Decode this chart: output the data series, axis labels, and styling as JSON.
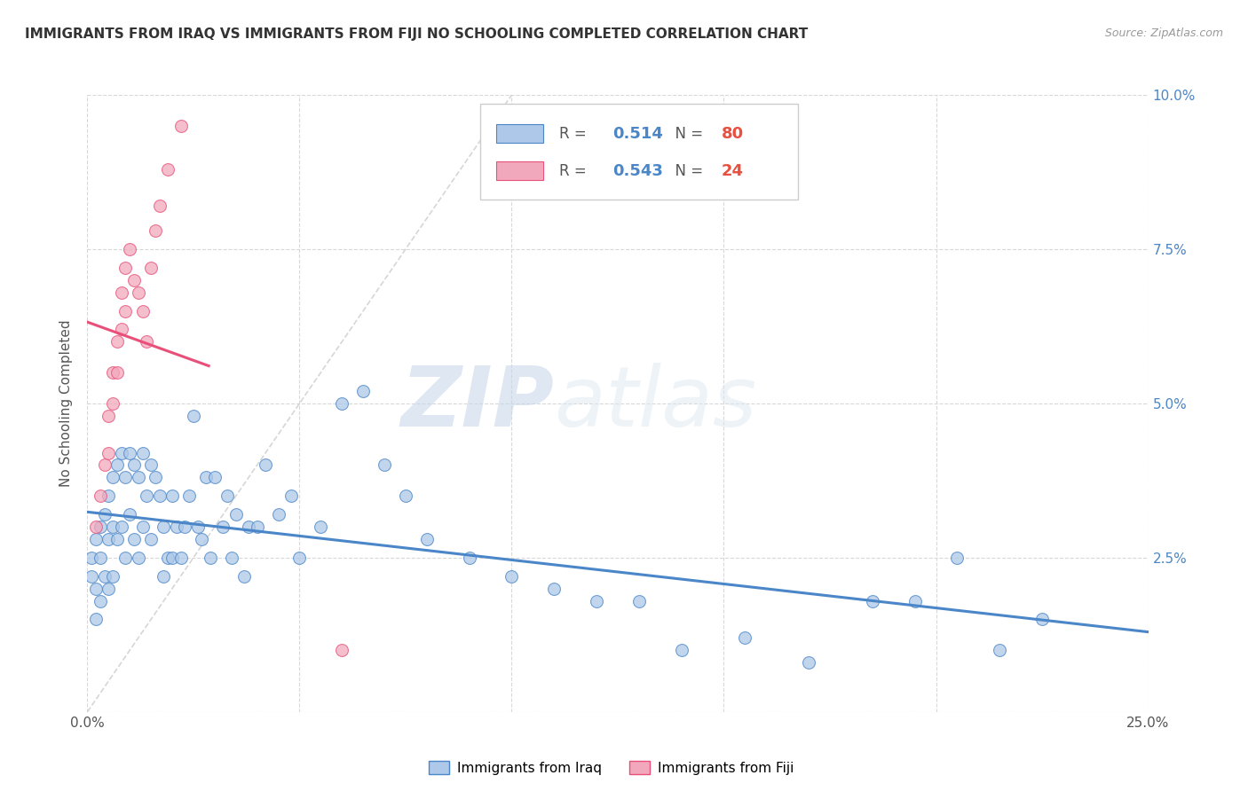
{
  "title": "IMMIGRANTS FROM IRAQ VS IMMIGRANTS FROM FIJI NO SCHOOLING COMPLETED CORRELATION CHART",
  "source": "Source: ZipAtlas.com",
  "ylabel": "No Schooling Completed",
  "x_min": 0.0,
  "x_max": 0.25,
  "y_min": 0.0,
  "y_max": 0.1,
  "iraq_R": 0.514,
  "iraq_N": 80,
  "fiji_R": 0.543,
  "fiji_N": 24,
  "iraq_color": "#adc8e8",
  "fiji_color": "#f2a8bc",
  "iraq_line_color": "#4a86c8",
  "fiji_line_color": "#e8507a",
  "diagonal_color": "#cccccc",
  "watermark_zip": "ZIP",
  "watermark_atlas": "atlas",
  "legend_iraq_label": "Immigrants from Iraq",
  "legend_fiji_label": "Immigrants from Fiji",
  "iraq_x": [
    0.001,
    0.001,
    0.002,
    0.002,
    0.002,
    0.003,
    0.003,
    0.003,
    0.004,
    0.004,
    0.005,
    0.005,
    0.005,
    0.006,
    0.006,
    0.006,
    0.007,
    0.007,
    0.008,
    0.008,
    0.009,
    0.009,
    0.01,
    0.01,
    0.011,
    0.011,
    0.012,
    0.012,
    0.013,
    0.013,
    0.014,
    0.015,
    0.015,
    0.016,
    0.017,
    0.018,
    0.018,
    0.019,
    0.02,
    0.02,
    0.021,
    0.022,
    0.023,
    0.024,
    0.025,
    0.026,
    0.027,
    0.028,
    0.029,
    0.03,
    0.032,
    0.033,
    0.034,
    0.035,
    0.037,
    0.038,
    0.04,
    0.042,
    0.045,
    0.048,
    0.05,
    0.055,
    0.06,
    0.065,
    0.07,
    0.075,
    0.08,
    0.09,
    0.1,
    0.11,
    0.12,
    0.13,
    0.14,
    0.155,
    0.17,
    0.185,
    0.195,
    0.205,
    0.215,
    0.225
  ],
  "iraq_y": [
    0.025,
    0.022,
    0.028,
    0.02,
    0.015,
    0.03,
    0.025,
    0.018,
    0.032,
    0.022,
    0.035,
    0.028,
    0.02,
    0.038,
    0.03,
    0.022,
    0.04,
    0.028,
    0.042,
    0.03,
    0.038,
    0.025,
    0.042,
    0.032,
    0.04,
    0.028,
    0.038,
    0.025,
    0.042,
    0.03,
    0.035,
    0.04,
    0.028,
    0.038,
    0.035,
    0.03,
    0.022,
    0.025,
    0.035,
    0.025,
    0.03,
    0.025,
    0.03,
    0.035,
    0.048,
    0.03,
    0.028,
    0.038,
    0.025,
    0.038,
    0.03,
    0.035,
    0.025,
    0.032,
    0.022,
    0.03,
    0.03,
    0.04,
    0.032,
    0.035,
    0.025,
    0.03,
    0.05,
    0.052,
    0.04,
    0.035,
    0.028,
    0.025,
    0.022,
    0.02,
    0.018,
    0.018,
    0.01,
    0.012,
    0.008,
    0.018,
    0.018,
    0.025,
    0.01,
    0.015
  ],
  "fiji_x": [
    0.002,
    0.003,
    0.004,
    0.005,
    0.005,
    0.006,
    0.006,
    0.007,
    0.007,
    0.008,
    0.008,
    0.009,
    0.009,
    0.01,
    0.011,
    0.012,
    0.013,
    0.014,
    0.015,
    0.016,
    0.017,
    0.019,
    0.022,
    0.06
  ],
  "fiji_y": [
    0.03,
    0.035,
    0.04,
    0.042,
    0.048,
    0.05,
    0.055,
    0.055,
    0.06,
    0.062,
    0.068,
    0.065,
    0.072,
    0.075,
    0.07,
    0.068,
    0.065,
    0.06,
    0.072,
    0.078,
    0.082,
    0.088,
    0.095,
    0.01
  ]
}
